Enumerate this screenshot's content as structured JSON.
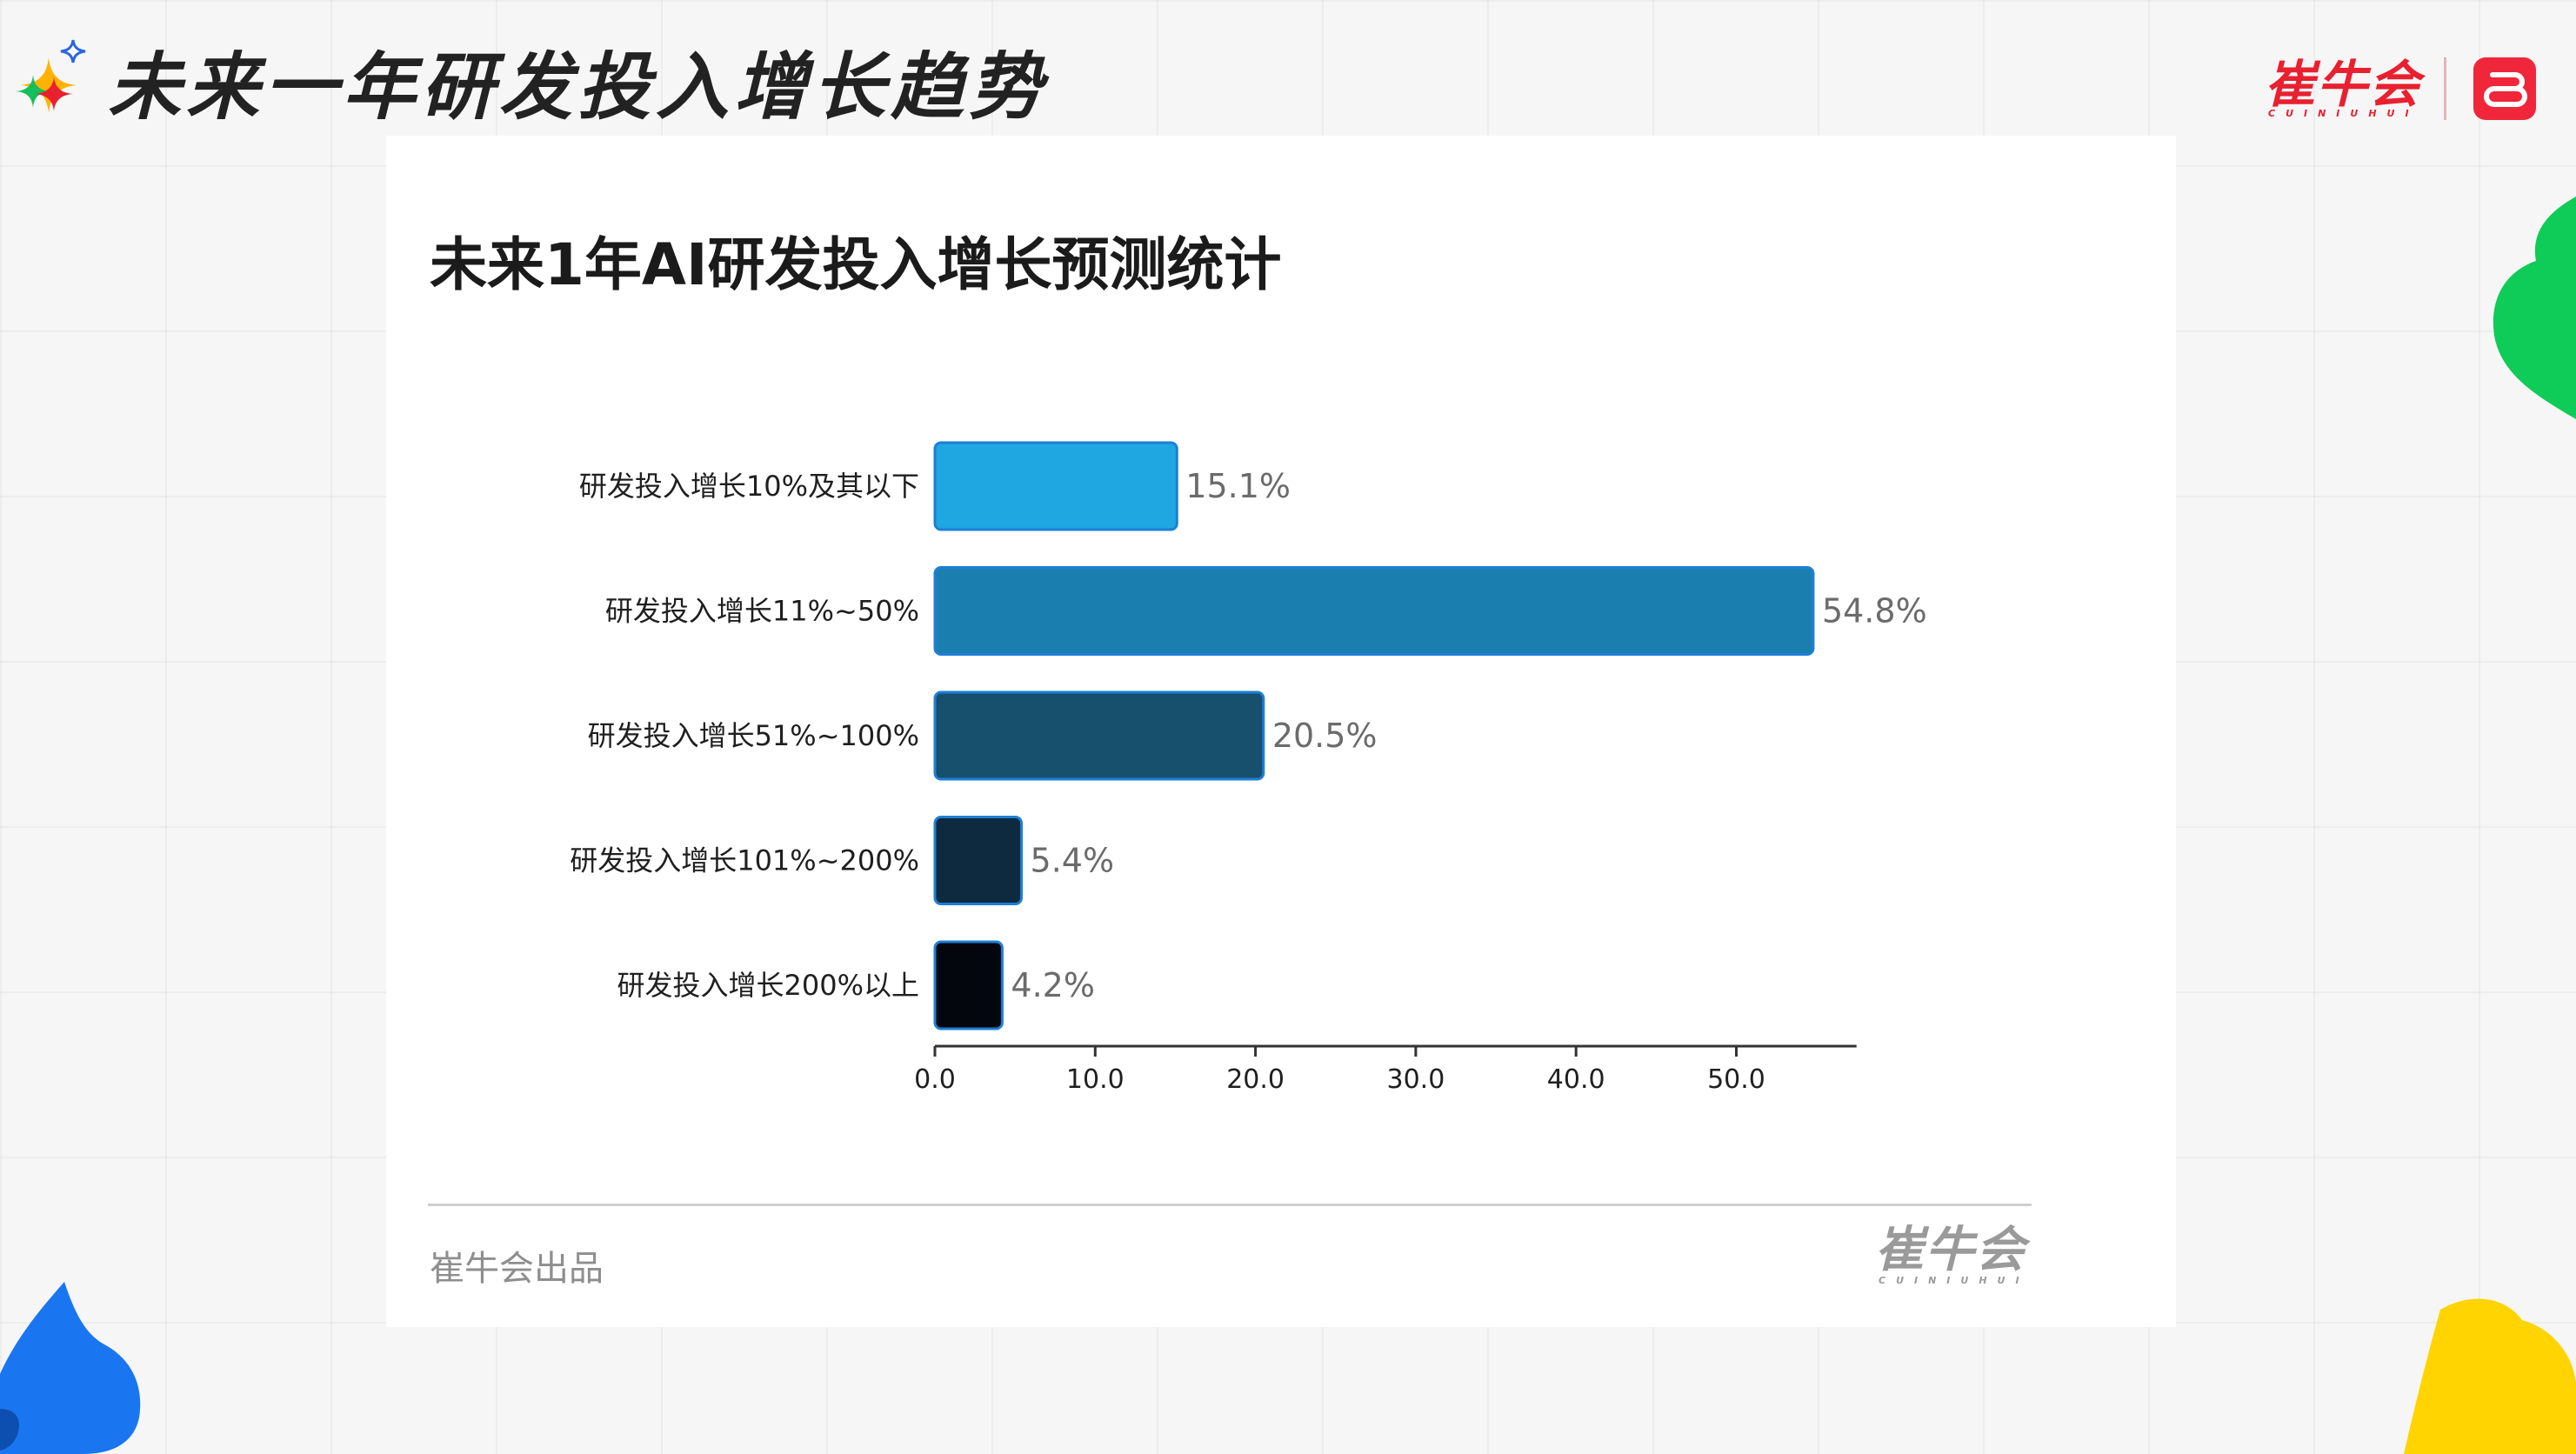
{
  "header": {
    "title": "未来一年研发投入增长趋势",
    "brand_name": "崔牛会",
    "brand_sub": "CUINIUHUI"
  },
  "chart_data": {
    "type": "bar",
    "orientation": "horizontal",
    "title": "未来1年AI研发投入增长预测统计",
    "categories": [
      "研发投入增长10%及其以下",
      "研发投入增长11%~50%",
      "研发投入增长51%~100%",
      "研发投入增长101%~200%",
      "研发投入增长200%以上"
    ],
    "values": [
      15.1,
      54.8,
      20.5,
      5.4,
      4.2
    ],
    "value_labels": [
      "15.1%",
      "54.8%",
      "20.5%",
      "5.4%",
      "4.2%"
    ],
    "bar_colors": [
      "#1ea7e1",
      "#1a7fae",
      "#16506d",
      "#0e2a3f",
      "#03060c"
    ],
    "bar_border_color": "#1d7fd6",
    "xlim": [
      0,
      57.5
    ],
    "xticks": [
      0,
      10,
      20,
      30,
      40,
      50
    ],
    "xtick_labels": [
      "0.0",
      "10.0",
      "20.0",
      "30.0",
      "40.0",
      "50.0"
    ],
    "xlabel": "",
    "ylabel": "",
    "grid": false,
    "legend": "none"
  },
  "footer": {
    "credit": "崔牛会出品",
    "logo_name": "崔牛会",
    "logo_sub": "CUINIUHUI"
  },
  "colors": {
    "background": "#f6f6f6",
    "card": "#ffffff",
    "brand_red": "#e8202f",
    "decor_green": "#0fcb58",
    "decor_blue": "#1a76f0",
    "decor_yellow": "#ffd400"
  }
}
